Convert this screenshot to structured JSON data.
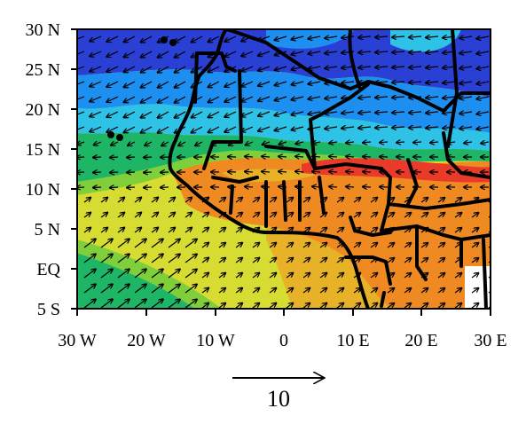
{
  "map": {
    "lat_labels": [
      "30 N",
      "25 N",
      "20 N",
      "15 N",
      "10 N",
      "5 N",
      "EQ",
      "5 S"
    ],
    "lon_labels": [
      "30 W",
      "20 W",
      "10 W",
      "0",
      "10 E",
      "20 E",
      "30 E"
    ],
    "extent": {
      "lon_min": -30,
      "lon_max": 30,
      "lat_min": -5,
      "lat_max": 30
    },
    "reference_vector": {
      "label": "10",
      "magnitude": 10
    },
    "colormap": [
      "#2a3fd4",
      "#1d8ff0",
      "#2ec3e6",
      "#1fb566",
      "#7fcf3a",
      "#d6dc31",
      "#e8b228",
      "#ef8a23",
      "#ea3a2a"
    ]
  }
}
